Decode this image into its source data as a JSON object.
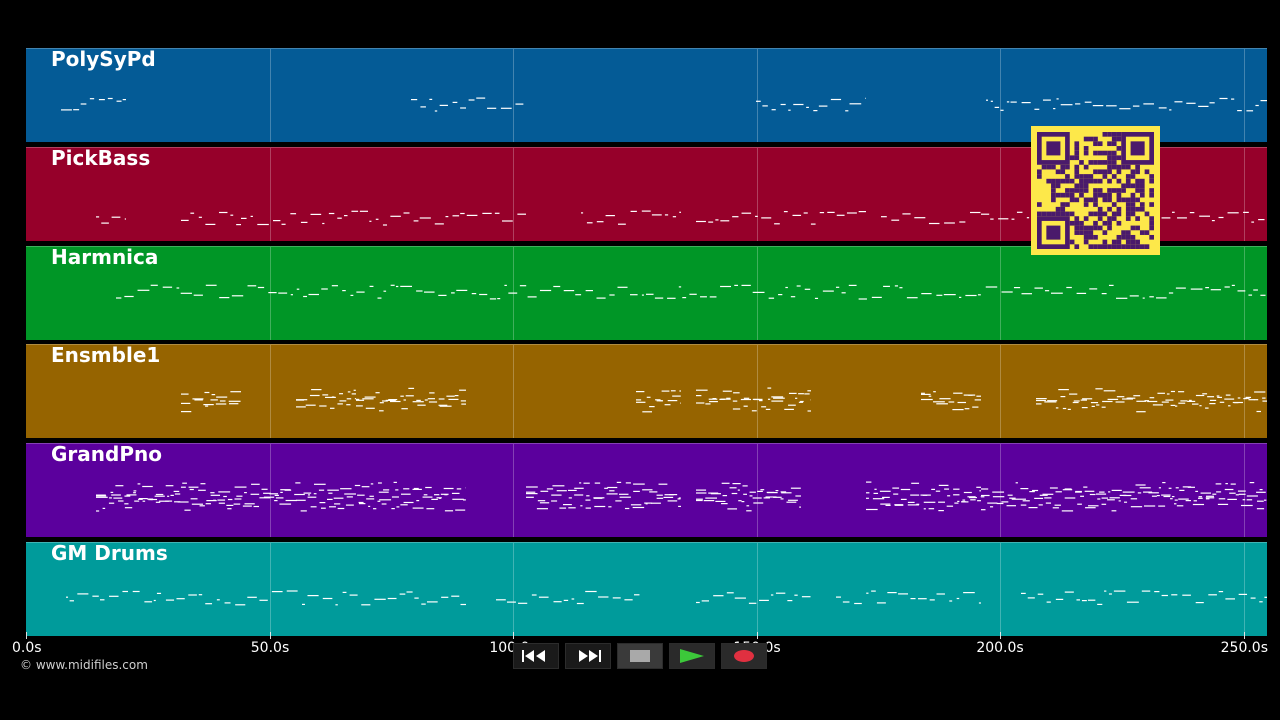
{
  "tracks": [
    {
      "name": "PolySyPd",
      "color": "#045b96"
    },
    {
      "name": "PickBass",
      "color": "#96002a"
    },
    {
      "name": "Harmnica",
      "color": "#009626"
    },
    {
      "name": "Ensmble1",
      "color": "#966400"
    },
    {
      "name": "GrandPno",
      "color": "#5b009d"
    },
    {
      "name": "GM Drums",
      "color": "#009b9b"
    }
  ],
  "timeline": {
    "ticks": [
      {
        "value": 0,
        "label": "0.0s"
      },
      {
        "value": 50,
        "label": "50.0s"
      },
      {
        "value": 100,
        "label": "100.0s"
      },
      {
        "value": 150,
        "label": "150.0s"
      },
      {
        "value": 200,
        "label": "200.0s"
      },
      {
        "value": 250,
        "label": "250.0s"
      }
    ],
    "max_seconds": 255
  },
  "copyright": "© www.midifiles.com",
  "transport": {
    "buttons": [
      {
        "name": "rewind-button",
        "icon": "rewind-icon"
      },
      {
        "name": "fast-forward-button",
        "icon": "fast-forward-icon"
      },
      {
        "name": "stop-button",
        "icon": "stop-icon"
      },
      {
        "name": "play-button",
        "icon": "play-icon",
        "color": "#22a020"
      },
      {
        "name": "record-button",
        "icon": "record-icon",
        "color": "#d2283c"
      }
    ]
  },
  "qr_code": {
    "icon": "qr-code-icon",
    "background": "#fde84a",
    "foreground": "#4a1a6b"
  }
}
